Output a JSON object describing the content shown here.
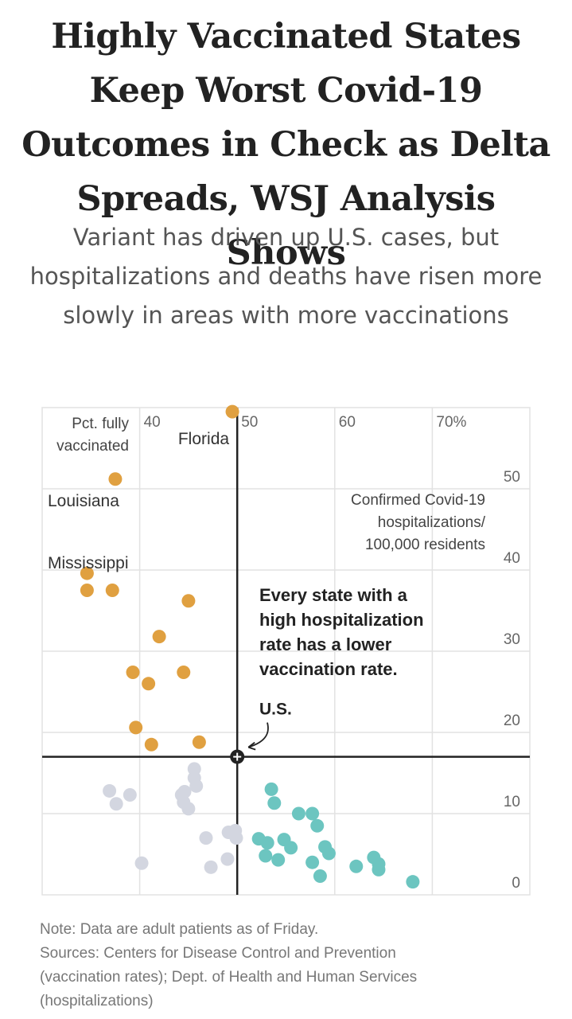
{
  "headline": "Highly Vaccinated States Keep Worst Covid-19 Outcomes in Check as Delta Spreads, WSJ Analysis Shows",
  "dek": "Variant has driven up U.S. cases, but hospitalizations and deaths have risen more slowly in areas with more vaccinations",
  "chart_data": {
    "type": "scatter",
    "x_axis_title": [
      "Pct. fully",
      "vaccinated"
    ],
    "y_axis_title": [
      "Confirmed Covid-19",
      "hospitalizations/",
      "100,000 residents"
    ],
    "x_ticks": [
      "40",
      "50",
      "60",
      "70%"
    ],
    "y_ticks": [
      "0",
      "10",
      "20",
      "30",
      "40",
      "50"
    ],
    "xlim": [
      30,
      80
    ],
    "ylim": [
      0,
      60
    ],
    "grid": true,
    "colors": {
      "high": "#e0a040",
      "low_vax": "#d3d6e0",
      "high_vax": "#6cc5c0",
      "axis": "#222222",
      "grid": "#e2e2e2"
    },
    "reference": {
      "label": "U.S.",
      "x": 50,
      "y": 17
    },
    "annotation": [
      "Every state with a",
      "high hospitalization",
      "rate has a lower",
      "vaccination rate."
    ],
    "labels": [
      {
        "text": "Florida",
        "x": 49.5,
        "y": 59.5
      },
      {
        "text": "Louisiana",
        "x": 37.5,
        "y": 51.2
      },
      {
        "text": "Mississippi",
        "x": 34.6,
        "y": 40.8
      }
    ],
    "series": [
      {
        "group": "high",
        "points": [
          [
            49.5,
            59.5
          ],
          [
            37.5,
            51.2
          ],
          [
            34.6,
            39.6
          ],
          [
            34.6,
            37.5
          ],
          [
            37.2,
            37.5
          ],
          [
            45.0,
            36.2
          ],
          [
            42.0,
            31.8
          ],
          [
            39.3,
            27.4
          ],
          [
            44.5,
            27.4
          ],
          [
            40.9,
            26.0
          ],
          [
            39.6,
            20.6
          ],
          [
            41.2,
            18.5
          ],
          [
            46.1,
            18.8
          ]
        ]
      },
      {
        "group": "low_vax",
        "points": [
          [
            36.9,
            12.8
          ],
          [
            39.0,
            12.3
          ],
          [
            37.6,
            11.2
          ],
          [
            44.3,
            12.3
          ],
          [
            44.6,
            12.7
          ],
          [
            44.5,
            11.4
          ],
          [
            45.0,
            10.6
          ],
          [
            45.6,
            15.5
          ],
          [
            45.6,
            14.4
          ],
          [
            45.8,
            13.4
          ],
          [
            46.8,
            7.0
          ],
          [
            49.1,
            7.7
          ],
          [
            49.8,
            7.9
          ],
          [
            49.9,
            7.0
          ],
          [
            40.2,
            3.9
          ],
          [
            47.3,
            3.4
          ],
          [
            49.0,
            4.4
          ]
        ]
      },
      {
        "group": "high_vax",
        "points": [
          [
            53.5,
            13.0
          ],
          [
            53.8,
            11.3
          ],
          [
            56.3,
            10.0
          ],
          [
            57.7,
            10.0
          ],
          [
            58.2,
            8.5
          ],
          [
            52.2,
            6.9
          ],
          [
            53.1,
            6.4
          ],
          [
            54.8,
            6.8
          ],
          [
            55.5,
            5.8
          ],
          [
            59.0,
            5.9
          ],
          [
            59.4,
            5.1
          ],
          [
            52.9,
            4.8
          ],
          [
            54.2,
            4.3
          ],
          [
            57.7,
            4.0
          ],
          [
            58.5,
            2.3
          ],
          [
            62.2,
            3.5
          ],
          [
            64.0,
            4.6
          ],
          [
            64.5,
            3.8
          ],
          [
            64.5,
            3.1
          ],
          [
            68.0,
            1.6
          ]
        ]
      }
    ]
  },
  "notes": {
    "note": "Note: Data are adult patients as of Friday.",
    "sources_1": "Sources: Centers for Disease Control and Prevention",
    "sources_2": "(vaccination rates); Dept. of Health and Human Services",
    "sources_3": "(hospitalizations)"
  }
}
